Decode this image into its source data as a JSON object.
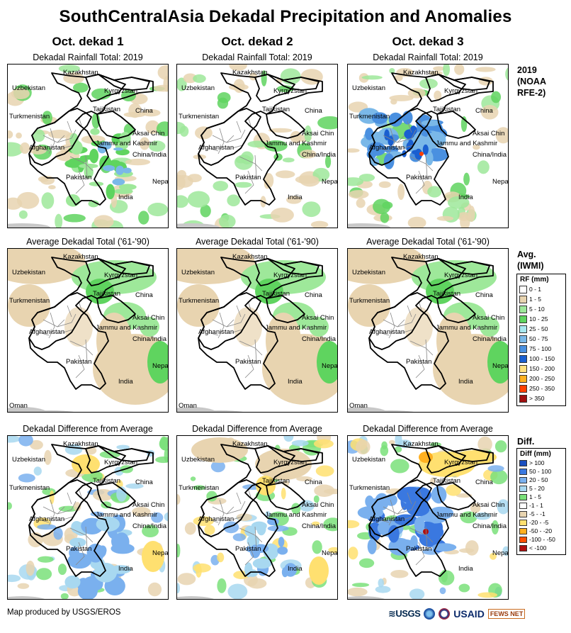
{
  "title": "SouthCentralAsia Dekadal Precipitation and Anomalies",
  "columns": [
    "Oct. dekad 1",
    "Oct. dekad 2",
    "Oct. dekad 3"
  ],
  "row_labels": {
    "rainfall": "Dekadal Rainfall Total: 2019",
    "average": "Average Dekadal Total ('61-'90)",
    "difference": "Dekadal Difference from Average"
  },
  "map_labels": {
    "kazakhstan": "Kazakhstan",
    "uzbekistan": "Uzbekistan",
    "kyrgyzstan": "Kyrgyzstan",
    "tajikistan": "Tajikistan",
    "china": "China",
    "turkmenistan": "Turkmenistan",
    "aksai_chin": "Aksai Chin",
    "jammu": "Jammu and Kashmir",
    "afghanistan": "Afghanistan",
    "china_india": "China/India",
    "pakistan": "Pakistan",
    "nepal": "Nepal",
    "india": "India",
    "oman": "Oman"
  },
  "side_labels": {
    "rainfall": [
      "2019",
      "(NOAA",
      "RFE-2)"
    ],
    "average": [
      "Avg.",
      "(IWMI)"
    ],
    "difference": [
      "Diff."
    ]
  },
  "rf_legend": {
    "title": "RF (mm)",
    "items": [
      {
        "label": "0 - 1",
        "color": "#ffffff"
      },
      {
        "label": "1 - 5",
        "color": "#e8d4b0"
      },
      {
        "label": "5 - 10",
        "color": "#9ee89a"
      },
      {
        "label": "10 - 25",
        "color": "#5fd45f"
      },
      {
        "label": "25 - 50",
        "color": "#a8e8f0"
      },
      {
        "label": "50 - 75",
        "color": "#7ab8e8"
      },
      {
        "label": "75 - 100",
        "color": "#4a90e0"
      },
      {
        "label": "100 - 150",
        "color": "#1a5fd0"
      },
      {
        "label": "150 - 200",
        "color": "#ffe080"
      },
      {
        "label": "200 - 250",
        "color": "#ffb020"
      },
      {
        "label": "250 - 350",
        "color": "#ff4000"
      },
      {
        "label": "> 350",
        "color": "#a01010"
      }
    ]
  },
  "diff_legend": {
    "title": "Diff (mm)",
    "items": [
      {
        "label": "> 100",
        "color": "#1a4fc0"
      },
      {
        "label": "50 - 100",
        "color": "#3a78e0"
      },
      {
        "label": "20 - 50",
        "color": "#7ab0ee"
      },
      {
        "label": "5 - 20",
        "color": "#a8d8f0"
      },
      {
        "label": "1 - 5",
        "color": "#7ae07a"
      },
      {
        "label": "-1 - 1",
        "color": "#ffffff"
      },
      {
        "label": "-5 - -1",
        "color": "#e8d4b0"
      },
      {
        "label": "-20 - -5",
        "color": "#ffe070"
      },
      {
        "label": "-50 - -20",
        "color": "#ffb020"
      },
      {
        "label": "-100 - -50",
        "color": "#ff5000"
      },
      {
        "label": "< -100",
        "color": "#b01010"
      }
    ]
  },
  "credit": "Map produced by USGS/EROS",
  "logos": {
    "usgs": "USGS",
    "usaid": "USAID",
    "fews": "FEWS NET"
  },
  "colors": {
    "sea": "#c8c8c8",
    "border": "#000000",
    "province": "#888888"
  }
}
